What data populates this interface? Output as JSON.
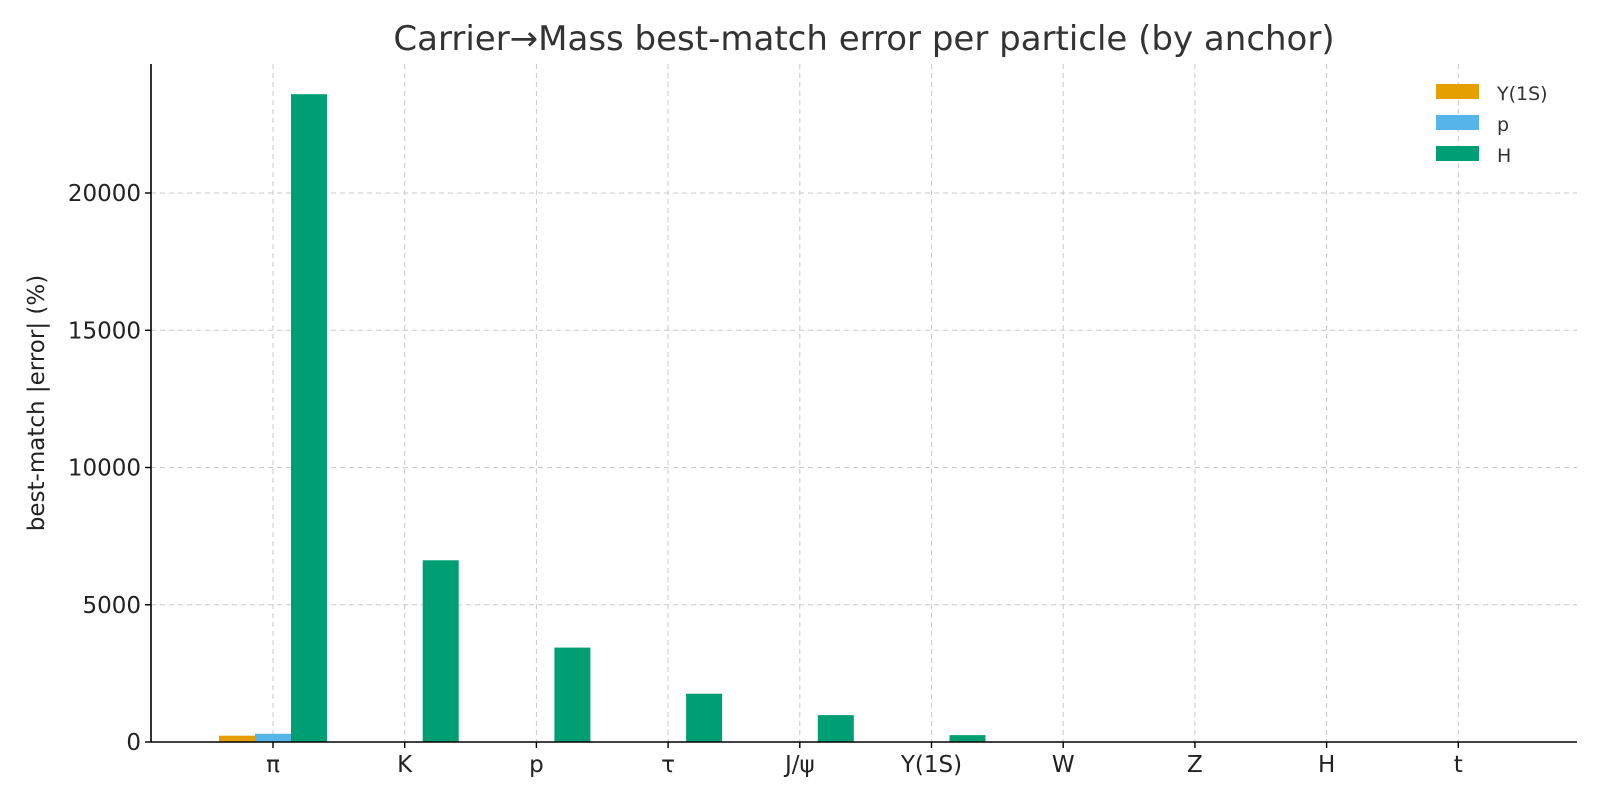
{
  "chart_data": {
    "type": "bar",
    "title": "Carrier→Mass best-match error per particle (by anchor)",
    "xlabel": "",
    "ylabel": "best-match |error| (%)",
    "categories": [
      "π",
      "K",
      "p",
      "τ",
      "J/ψ",
      "Υ(1S)",
      "W",
      "Z",
      "H",
      "t"
    ],
    "ylim": [
      0,
      24700
    ],
    "yticks": [
      0,
      5000,
      10000,
      15000,
      20000
    ],
    "grid": true,
    "legend_position": "top-right",
    "series": [
      {
        "name": "Υ(1S)",
        "color": "#E69F00",
        "values": [
          230,
          4,
          3,
          2,
          1,
          0,
          0,
          0,
          0,
          0
        ]
      },
      {
        "name": "p",
        "color": "#56B4E9",
        "values": [
          300,
          5,
          4,
          3,
          2,
          1,
          0,
          0,
          0,
          0
        ]
      },
      {
        "name": "H",
        "color": "#009E73",
        "values": [
          23600,
          6620,
          3440,
          1760,
          980,
          250,
          5,
          3,
          2,
          1
        ]
      }
    ]
  }
}
